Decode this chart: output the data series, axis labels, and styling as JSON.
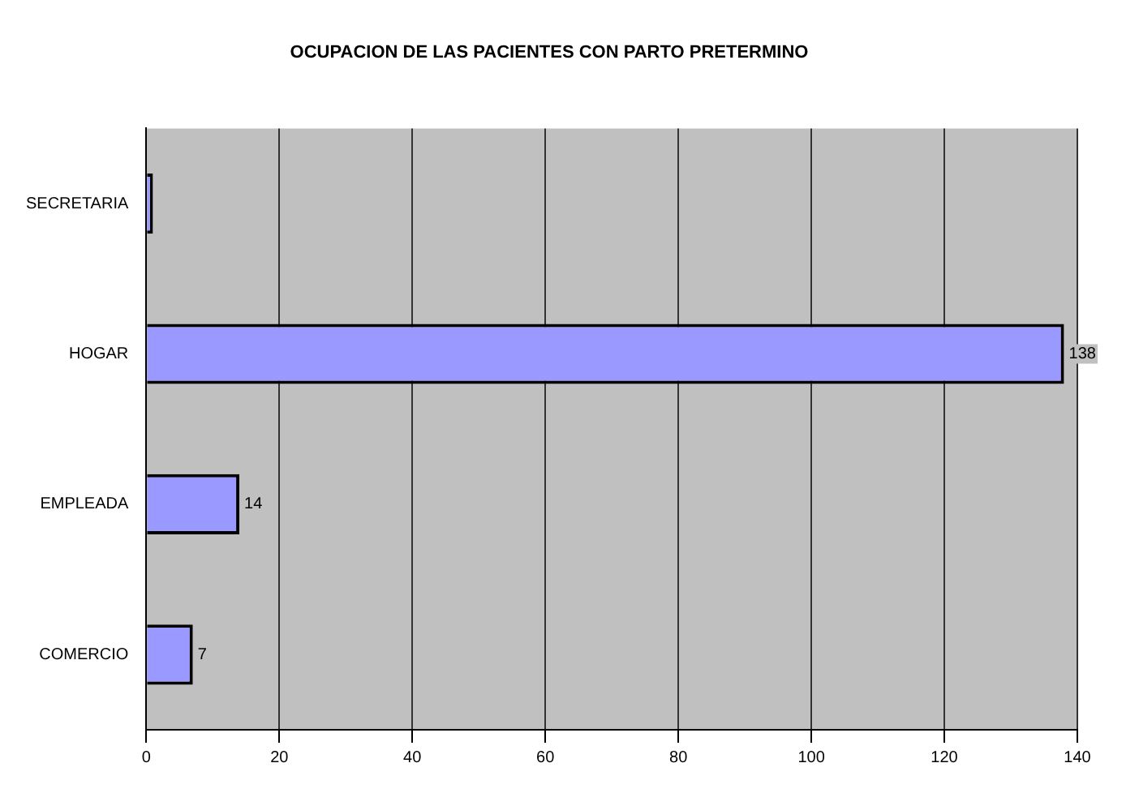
{
  "chart_data": {
    "type": "bar",
    "orientation": "horizontal",
    "title": "OCUPACION DE LAS PACIENTES CON PARTO PRETERMINO",
    "categories": [
      "SECRETARIA",
      "HOGAR",
      "EMPLEADA",
      "COMERCIO"
    ],
    "values": [
      1,
      138,
      14,
      7
    ],
    "value_labels": [
      null,
      "138",
      "14",
      "7"
    ],
    "color": "#9999ff",
    "xlim": [
      0,
      140
    ],
    "xticks": [
      0,
      20,
      40,
      60,
      80,
      100,
      120,
      140
    ],
    "grid": "x",
    "legend": false
  }
}
